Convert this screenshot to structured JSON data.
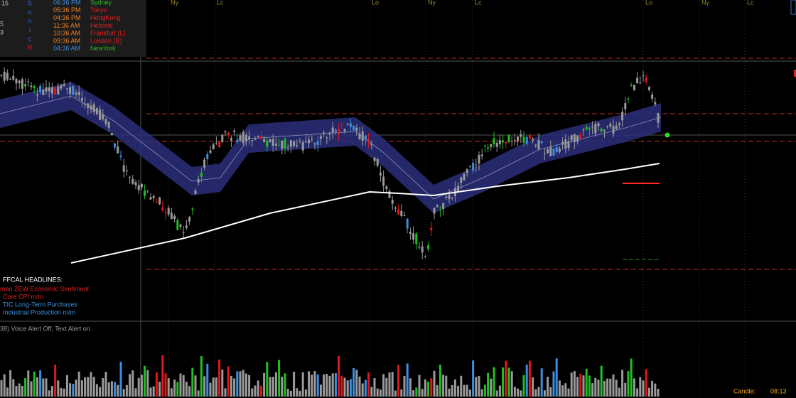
{
  "header": {
    "symbol_fragment": "15",
    "side_fragments": [
      "5",
      "3"
    ],
    "brand_letters": [
      "S",
      "o",
      "n",
      "i",
      "c",
      "R"
    ]
  },
  "clock": [
    {
      "time": "06:36 PM",
      "city": "Sydney"
    },
    {
      "time": "05:36 PM",
      "city": "Tokyo"
    },
    {
      "time": "04:36 PM",
      "city": "HongKong"
    },
    {
      "time": "11:36 AM",
      "city": "Helsinki"
    },
    {
      "time": "10:36 AM",
      "city": "Frankfurt  (L)"
    },
    {
      "time": "09:36 AM",
      "city": "London  (B)"
    },
    {
      "time": "04:36 AM",
      "city": "NewYork"
    }
  ],
  "sessions": [
    "Ny",
    "Lc",
    "Lo",
    "Ny",
    "Lc",
    "Lo",
    "Ny",
    "Lc"
  ],
  "headlines": {
    "title": "FFCAL HEADLINES:",
    "items": [
      "man ZEW Economic Sentiment",
      "Core CPI m/m",
      "TIC Long-Term Purchases",
      "Industrial Production m/m"
    ]
  },
  "status": "38)   Voice Alert Off, Text Alert on.",
  "candle_timer": {
    "label": "Candle:",
    "time": "08:13"
  }
}
